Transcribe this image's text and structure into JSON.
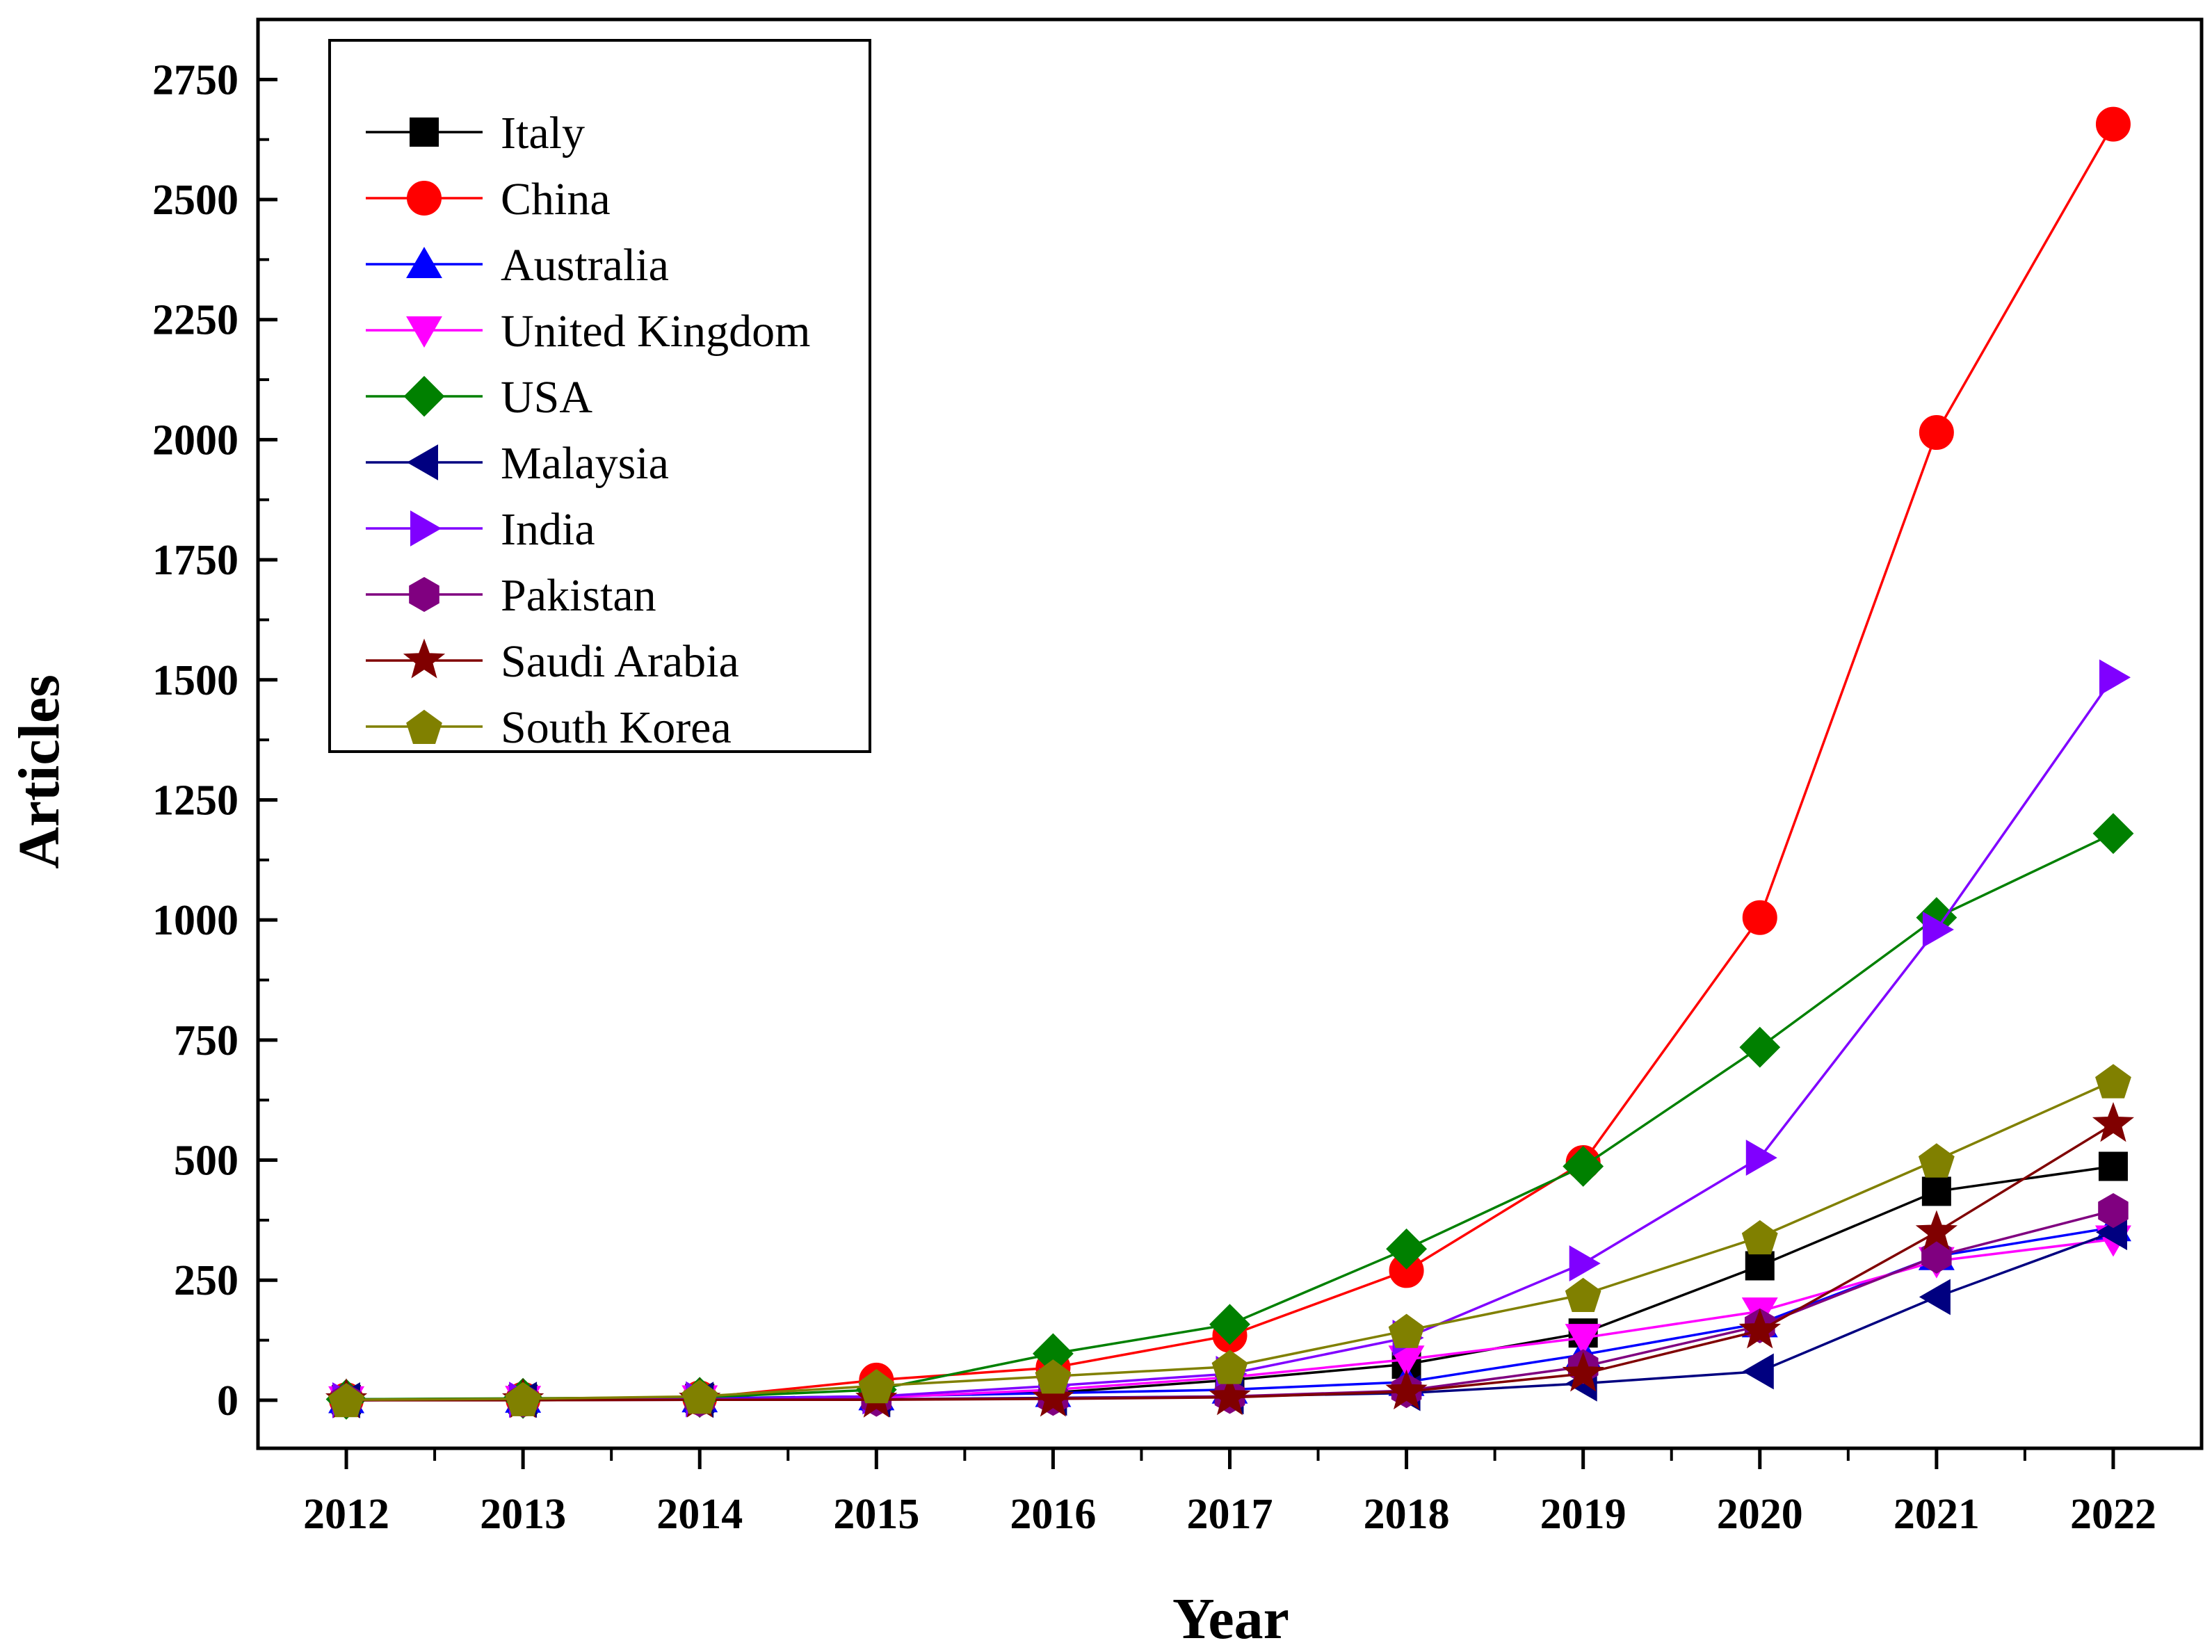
{
  "chart_data": {
    "type": "line",
    "title": "",
    "xlabel": "Year",
    "ylabel": "Articles",
    "categories": [
      "2012",
      "2013",
      "2014",
      "2015",
      "2016",
      "2017",
      "2018",
      "2019",
      "2020",
      "2021",
      "2022"
    ],
    "xlim": [
      2011.5,
      2022.5
    ],
    "ylim": [
      -100,
      2875
    ],
    "yticks": [
      0,
      250,
      500,
      750,
      1000,
      1250,
      1500,
      1750,
      2000,
      2250,
      2500,
      2750
    ],
    "ytick_labels": [
      "0",
      "250",
      "500",
      "750",
      "1000",
      "1250",
      "1500",
      "1750",
      "2000",
      "2250",
      "2500",
      "2750"
    ],
    "grid": false,
    "legend_position": "top-left",
    "series": [
      {
        "name": "Italy",
        "color": "#000000",
        "marker": "square",
        "values": [
          1,
          2,
          4,
          8,
          16,
          42,
          75,
          140,
          280,
          435,
          487
        ]
      },
      {
        "name": "China",
        "color": "#ff0000",
        "marker": "circle",
        "values": [
          1,
          2,
          5,
          42,
          68,
          135,
          270,
          495,
          1005,
          2015,
          2657
        ]
      },
      {
        "name": "Australia",
        "color": "#0000ff",
        "marker": "triangle-up",
        "values": [
          2,
          3,
          4,
          8,
          15,
          22,
          38,
          95,
          160,
          300,
          360
        ]
      },
      {
        "name": "United Kingdom",
        "color": "#ff00ff",
        "marker": "triangle-down",
        "values": [
          0,
          1,
          2,
          5,
          22,
          48,
          85,
          130,
          185,
          290,
          335
        ]
      },
      {
        "name": "USA",
        "color": "#008000",
        "marker": "diamond",
        "values": [
          2,
          4,
          6,
          22,
          97,
          158,
          315,
          487,
          735,
          1005,
          1180
        ]
      },
      {
        "name": "Malaysia",
        "color": "#000080",
        "marker": "triangle-left",
        "values": [
          0,
          1,
          1,
          2,
          5,
          8,
          15,
          35,
          60,
          215,
          350
        ]
      },
      {
        "name": "India",
        "color": "#8000ff",
        "marker": "triangle-right",
        "values": [
          0,
          1,
          2,
          8,
          30,
          55,
          130,
          285,
          505,
          980,
          1505
        ]
      },
      {
        "name": "Pakistan",
        "color": "#800080",
        "marker": "hexagon",
        "values": [
          0,
          0,
          1,
          2,
          4,
          8,
          20,
          70,
          155,
          300,
          395
        ]
      },
      {
        "name": "Saudi Arabia",
        "color": "#800000",
        "marker": "star",
        "values": [
          0,
          0,
          1,
          1,
          3,
          6,
          18,
          55,
          145,
          350,
          575
        ]
      },
      {
        "name": "South Korea",
        "color": "#808000",
        "marker": "pentagon",
        "values": [
          1,
          3,
          8,
          30,
          50,
          70,
          145,
          220,
          340,
          500,
          665
        ]
      }
    ]
  }
}
